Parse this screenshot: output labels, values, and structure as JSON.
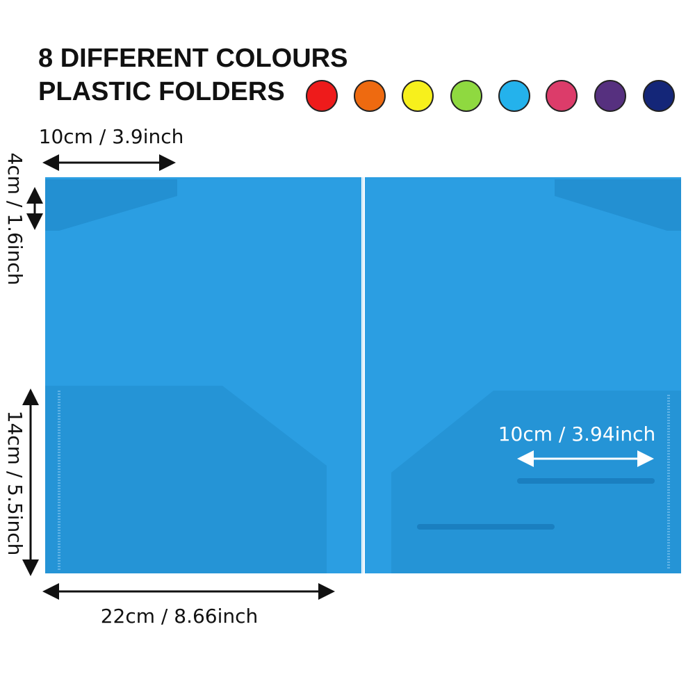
{
  "header": {
    "title_line1": "8 DIFFERENT COLOURS",
    "title_line2": "PLASTIC FOLDERS"
  },
  "dimensions": {
    "flap_width": "10cm / 3.9inch",
    "flap_height": "4cm / 1.6inch",
    "pocket_height": "14cm / 5.5inch",
    "folder_width": "22cm / 8.66inch",
    "card_slot_width": "10cm / 3.94inch"
  }
}
